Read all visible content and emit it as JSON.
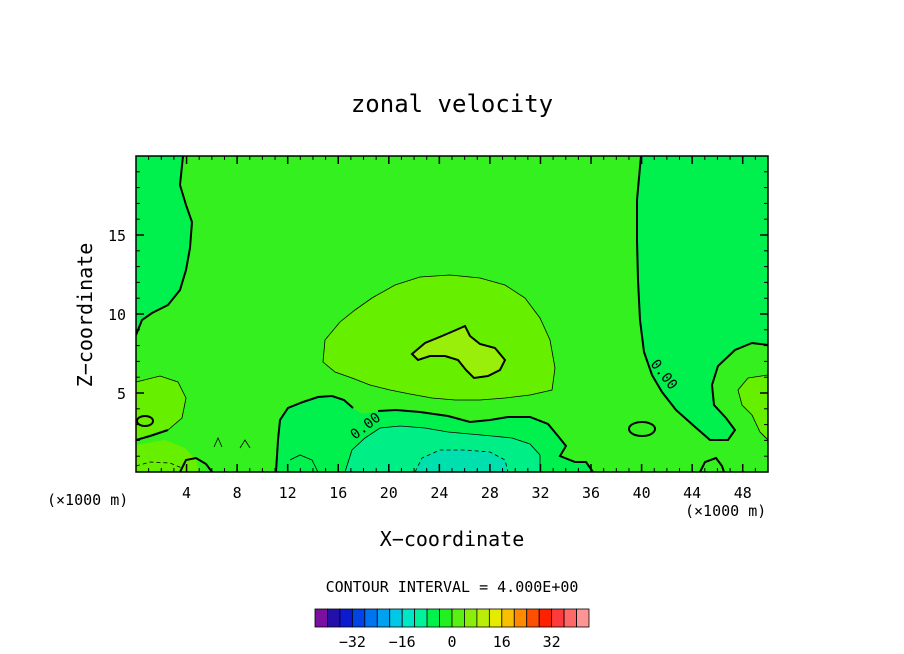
{
  "chart_data": {
    "type": "heatmap",
    "title": "zonal velocity",
    "xlabel": "X−coordinate",
    "ylabel": "Z−coordinate",
    "x_unit_left": "(×1000 m)",
    "x_unit_right": "(×1000 m)",
    "xlim": [
      0,
      50
    ],
    "ylim": [
      0,
      20
    ],
    "x_ticks": [
      4,
      8,
      12,
      16,
      20,
      24,
      28,
      32,
      36,
      40,
      44,
      48
    ],
    "y_ticks": [
      5,
      10,
      15
    ],
    "contour_interval_text": "CONTOUR INTERVAL = 4.000E+00",
    "zero_contour_label": "0.00",
    "colorbar": {
      "levels": [
        -36,
        -32,
        -28,
        -24,
        -20,
        -16,
        -12,
        -8,
        -4,
        0,
        4,
        8,
        12,
        16,
        20,
        24,
        28,
        32,
        36
      ],
      "colors": [
        "#7a0fa0",
        "#2410a8",
        "#0c1ad0",
        "#0044e6",
        "#0074f0",
        "#00a2f0",
        "#00c8e6",
        "#00e6c8",
        "#00f29a",
        "#00f24a",
        "#22f020",
        "#5af014",
        "#8aee0a",
        "#baee08",
        "#e6ea00",
        "#f8c000",
        "#ff8a00",
        "#ff5000",
        "#ff2000",
        "#ff3a3a",
        "#ff6868",
        "#ff9494"
      ],
      "tick_labels": [
        "−32",
        "−16",
        "0",
        "16",
        "32"
      ],
      "tick_values": [
        -32,
        -16,
        0,
        16,
        32
      ]
    },
    "fill_colors": {
      "background": "#33f01e",
      "band_neg4": "#00f04e",
      "band_neg8": "#00ee86",
      "band_neg12": "#00e0ae",
      "band_pos4": "#66f000",
      "band_pos8": "#9aef0a"
    }
  }
}
